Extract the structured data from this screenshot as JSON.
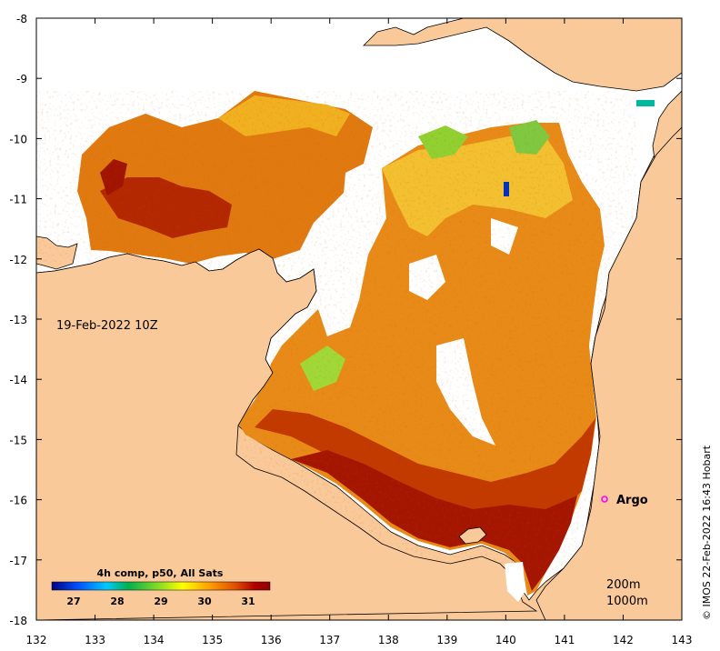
{
  "map": {
    "date_label": "19-Feb-2022 10Z",
    "credit": "© IMOS 22-Feb-2022 16:43 Hobart",
    "argo_label": "Argo",
    "depth_labels": [
      "200m",
      "1000m"
    ],
    "x_ticks": [
      "132",
      "133",
      "134",
      "135",
      "136",
      "137",
      "138",
      "139",
      "140",
      "141",
      "142",
      "143"
    ],
    "y_ticks": [
      "-8",
      "-9",
      "-10",
      "-11",
      "-12",
      "-13",
      "-14",
      "-15",
      "-16",
      "-17",
      "-18"
    ],
    "lon_range": [
      132,
      143
    ],
    "lat_range": [
      -18,
      -8
    ],
    "colors": {
      "land": "#fac999",
      "no_data": "#ffffff",
      "coast": "#000000",
      "argo_marker": "#ff00ff"
    }
  },
  "colorbar": {
    "title": "4h comp, p50, All Sats",
    "tick_labels": [
      "27",
      "28",
      "29",
      "30",
      "31"
    ],
    "range": [
      26.5,
      31.5
    ],
    "stops": [
      "#000080",
      "#0050ff",
      "#00c8ff",
      "#00b050",
      "#90e020",
      "#ffff00",
      "#ffa000",
      "#e05000",
      "#b00000",
      "#900000"
    ]
  }
}
